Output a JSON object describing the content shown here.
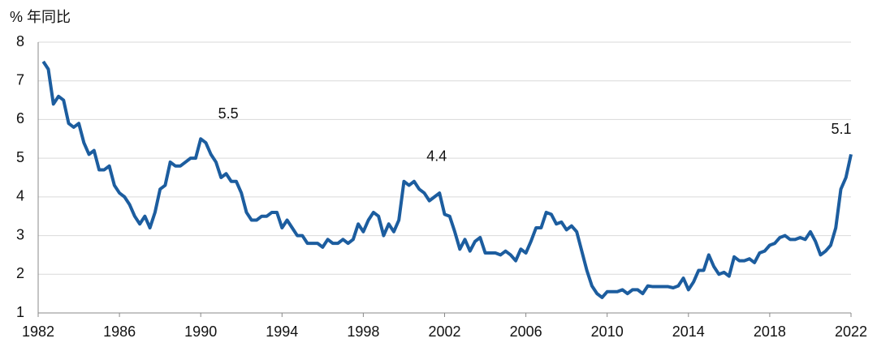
{
  "chart_data": {
    "type": "line",
    "y_label": "% 年同比",
    "color": "#1c5d9f",
    "x": [
      1982.25,
      1982.5,
      1982.75,
      1983,
      1983.25,
      1983.5,
      1983.75,
      1984,
      1984.25,
      1984.5,
      1984.75,
      1985,
      1985.25,
      1985.5,
      1985.75,
      1986,
      1986.25,
      1986.5,
      1986.75,
      1987,
      1987.25,
      1987.5,
      1987.75,
      1988,
      1988.25,
      1988.5,
      1988.75,
      1989,
      1989.25,
      1989.5,
      1989.75,
      1990,
      1990.25,
      1990.5,
      1990.75,
      1991,
      1991.25,
      1991.5,
      1991.75,
      1992,
      1992.25,
      1992.5,
      1992.75,
      1993,
      1993.25,
      1993.5,
      1993.75,
      1994,
      1994.25,
      1994.5,
      1994.75,
      1995,
      1995.25,
      1995.5,
      1995.75,
      1996,
      1996.25,
      1996.5,
      1996.75,
      1997,
      1997.25,
      1997.5,
      1997.75,
      1998,
      1998.25,
      1998.5,
      1998.75,
      1999,
      1999.25,
      1999.5,
      1999.75,
      2000,
      2000.25,
      2000.5,
      2000.75,
      2001,
      2001.25,
      2001.5,
      2001.75,
      2002,
      2002.25,
      2002.5,
      2002.75,
      2003,
      2003.25,
      2003.5,
      2003.75,
      2004,
      2004.25,
      2004.5,
      2004.75,
      2005,
      2005.25,
      2005.5,
      2005.75,
      2006,
      2006.25,
      2006.5,
      2006.75,
      2007,
      2007.25,
      2007.5,
      2007.75,
      2008,
      2008.25,
      2008.5,
      2008.75,
      2009,
      2009.25,
      2009.5,
      2009.75,
      2010,
      2010.25,
      2010.5,
      2010.75,
      2011,
      2011.25,
      2011.5,
      2011.75,
      2012,
      2012.25,
      2012.5,
      2012.75,
      2013,
      2013.25,
      2013.5,
      2013.75,
      2014,
      2014.25,
      2014.5,
      2014.75,
      2015,
      2015.25,
      2015.5,
      2015.75,
      2016,
      2016.25,
      2016.5,
      2016.75,
      2017,
      2017.25,
      2017.5,
      2017.75,
      2018,
      2018.25,
      2018.5,
      2018.75,
      2019,
      2019.25,
      2019.5,
      2019.75,
      2020,
      2020.25,
      2020.5,
      2020.75,
      2021,
      2021.25,
      2021.5,
      2021.75,
      2022
    ],
    "values": [
      7.5,
      7.3,
      6.4,
      6.6,
      6.5,
      5.9,
      5.8,
      5.9,
      5.4,
      5.1,
      5.2,
      4.7,
      4.7,
      4.8,
      4.3,
      4.1,
      4.0,
      3.8,
      3.5,
      3.3,
      3.5,
      3.2,
      3.6,
      4.2,
      4.3,
      4.9,
      4.8,
      4.8,
      4.9,
      5.0,
      5.0,
      5.5,
      5.4,
      5.1,
      4.9,
      4.5,
      4.6,
      4.4,
      4.4,
      4.1,
      3.6,
      3.4,
      3.4,
      3.5,
      3.5,
      3.6,
      3.6,
      3.2,
      3.4,
      3.2,
      3.0,
      3.0,
      2.8,
      2.8,
      2.8,
      2.7,
      2.9,
      2.8,
      2.8,
      2.9,
      2.8,
      2.9,
      3.3,
      3.1,
      3.4,
      3.6,
      3.5,
      3.0,
      3.3,
      3.1,
      3.4,
      4.4,
      4.3,
      4.4,
      4.2,
      4.1,
      3.9,
      4.0,
      4.1,
      3.55,
      3.5,
      3.1,
      2.65,
      2.9,
      2.6,
      2.85,
      2.95,
      2.55,
      2.55,
      2.55,
      2.5,
      2.6,
      2.5,
      2.35,
      2.65,
      2.55,
      2.85,
      3.2,
      3.2,
      3.6,
      3.55,
      3.3,
      3.35,
      3.15,
      3.25,
      3.1,
      2.6,
      2.1,
      1.7,
      1.5,
      1.4,
      1.55,
      1.55,
      1.55,
      1.6,
      1.5,
      1.6,
      1.6,
      1.5,
      1.7,
      1.68,
      1.68,
      1.68,
      1.68,
      1.65,
      1.7,
      1.9,
      1.6,
      1.8,
      2.1,
      2.1,
      2.5,
      2.2,
      2.0,
      2.05,
      1.95,
      2.45,
      2.35,
      2.35,
      2.4,
      2.3,
      2.55,
      2.6,
      2.75,
      2.8,
      2.95,
      3.0,
      2.9,
      2.9,
      2.95,
      2.9,
      3.1,
      2.85,
      2.5,
      2.6,
      2.75,
      3.2,
      4.2,
      4.5,
      5.1
    ],
    "xlim": [
      1982,
      2022
    ],
    "xticks": [
      1982,
      1986,
      1990,
      1994,
      1998,
      2002,
      2006,
      2010,
      2014,
      2018,
      2022
    ],
    "ylim": [
      1,
      8
    ],
    "yticks": [
      1,
      2,
      3,
      4,
      5,
      6,
      7,
      8
    ],
    "grid": true,
    "annotations": [
      {
        "text": "5.5",
        "x": 1990.0,
        "y": 5.5
      },
      {
        "text": "4.4",
        "x": 2000.25,
        "y": 4.4
      },
      {
        "text": "5.1",
        "x": 2022,
        "y": 5.1
      }
    ]
  }
}
